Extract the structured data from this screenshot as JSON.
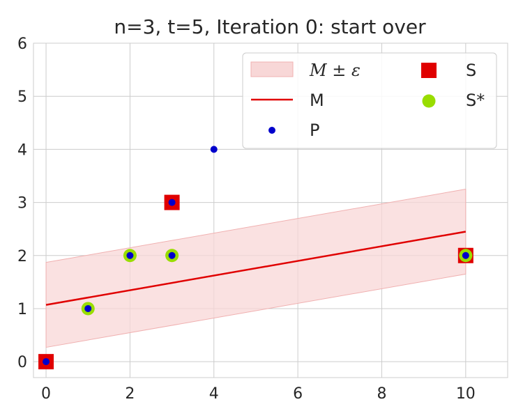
{
  "chart_data": {
    "type": "scatter",
    "title": "n=3, t=5, Iteration 0: start over",
    "xlabel": "",
    "ylabel": "",
    "xlim": [
      -0.3,
      11
    ],
    "ylim": [
      -0.3,
      6
    ],
    "xticks": [
      0,
      2,
      4,
      6,
      8,
      10
    ],
    "yticks": [
      0,
      1,
      2,
      3,
      4,
      5,
      6
    ],
    "grid": true,
    "legend_position": "top-right",
    "colors": {
      "band": "#f8d7d7",
      "line": "#e00000",
      "S": "#e00000",
      "S_star": "#99dd00",
      "P": "#0000cc"
    },
    "legend": {
      "band_label": "M ± ε",
      "line_label": "M",
      "P_label": "P",
      "S_label": "S",
      "S_star_label": "S*"
    },
    "series": [
      {
        "name": "M ± ε",
        "kind": "band",
        "x": [
          0,
          10
        ],
        "lower": [
          0.27,
          1.65
        ],
        "upper": [
          1.87,
          3.25
        ]
      },
      {
        "name": "M",
        "kind": "line",
        "x": [
          0,
          10
        ],
        "y": [
          1.07,
          2.45
        ]
      },
      {
        "name": "S",
        "kind": "square",
        "points": [
          [
            0,
            0
          ],
          [
            3,
            3
          ],
          [
            10,
            2
          ]
        ]
      },
      {
        "name": "S*",
        "kind": "circle",
        "points": [
          [
            1,
            1
          ],
          [
            2,
            2
          ],
          [
            3,
            2
          ],
          [
            10,
            2
          ]
        ]
      },
      {
        "name": "P",
        "kind": "dot",
        "points": [
          [
            0,
            0
          ],
          [
            1,
            1
          ],
          [
            2,
            2
          ],
          [
            3,
            2
          ],
          [
            3,
            3
          ],
          [
            4,
            4
          ],
          [
            10,
            2
          ]
        ]
      }
    ]
  }
}
